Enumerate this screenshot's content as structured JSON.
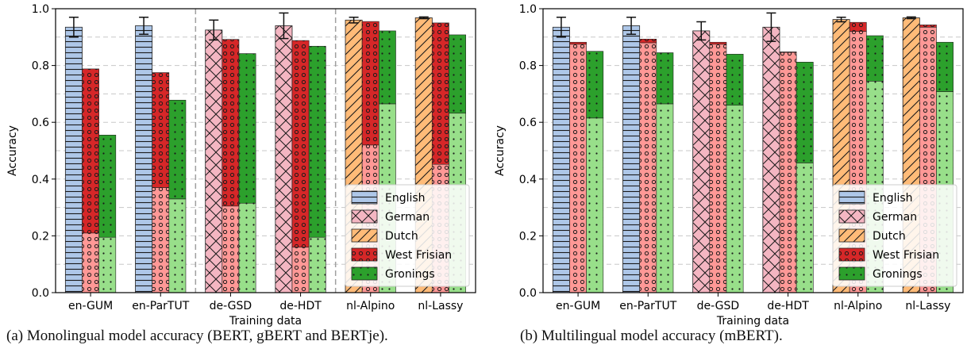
{
  "legend_colors": {
    "English": "#aec7e8",
    "German": "#f4b6c2",
    "Dutch": "#ffbb78",
    "West Frisian": "#d62728",
    "Gronings": "#2ca02c",
    "West Frisian (light)": "#ff9896",
    "Gronings (light)": "#98df8a"
  },
  "captions": {
    "a": "(a) Monolingual model accuracy (BERT, gBERT and BERTje).",
    "b": "(b) Multilingual model accuracy (mBERT)."
  },
  "chart_data": [
    {
      "type": "bar",
      "title": "",
      "xlabel": "Training data",
      "ylabel": "Accuracy",
      "ylim": [
        0,
        1
      ],
      "yticks": [
        "0.0",
        "0.2",
        "0.4",
        "0.6",
        "0.8",
        "1.0"
      ],
      "grid": "horizontal dashed",
      "group_separators": "dashed vertical lines after en-ParTUT and de-HDT",
      "legend_position": "lower right",
      "legend": [
        "English",
        "German",
        "Dutch",
        "West Frisian",
        "Gronings"
      ],
      "categories": [
        "en-GUM",
        "en-ParTUT",
        "de-GSD",
        "de-HDT",
        "nl-Alpino",
        "nl-Lassy"
      ],
      "source_language": [
        "English",
        "English",
        "German",
        "German",
        "Dutch",
        "Dutch"
      ],
      "series": [
        {
          "name": "English",
          "values": [
            0.935,
            0.94,
            0.925,
            0.94,
            0.96,
            0.968
          ],
          "error": [
            0.035,
            0.03,
            0.035,
            0.045,
            0.01,
            0.003
          ],
          "role": "in-language bar"
        },
        {
          "name": "West Frisian",
          "values": [
            0.788,
            0.775,
            0.892,
            0.888,
            0.955,
            0.95
          ],
          "transfer_lower": [
            0.21,
            0.37,
            0.305,
            0.16,
            0.52,
            0.452
          ]
        },
        {
          "name": "Gronings",
          "values": [
            0.555,
            0.678,
            0.842,
            0.868,
            0.922,
            0.908
          ],
          "transfer_lower": [
            0.195,
            0.33,
            0.315,
            0.195,
            0.665,
            0.632
          ]
        }
      ]
    },
    {
      "type": "bar",
      "title": "",
      "xlabel": "Training data",
      "ylabel": "Accuracy",
      "ylim": [
        0,
        1
      ],
      "yticks": [
        "0.0",
        "0.2",
        "0.4",
        "0.6",
        "0.8",
        "1.0"
      ],
      "grid": "horizontal dashed",
      "legend_position": "lower right",
      "legend": [
        "English",
        "German",
        "Dutch",
        "West Frisian",
        "Gronings"
      ],
      "categories": [
        "en-GUM",
        "en-ParTUT",
        "de-GSD",
        "de-HDT",
        "nl-Alpino",
        "nl-Lassy"
      ],
      "source_language": [
        "English",
        "English",
        "German",
        "German",
        "Dutch",
        "Dutch"
      ],
      "series": [
        {
          "name": "English",
          "values": [
            0.935,
            0.94,
            0.922,
            0.935,
            0.962,
            0.968
          ],
          "error": [
            0.035,
            0.03,
            0.032,
            0.05,
            0.008,
            0.003
          ],
          "role": "in-language bar"
        },
        {
          "name": "West Frisian",
          "values": [
            0.882,
            0.893,
            0.882,
            0.848,
            0.952,
            0.943
          ],
          "transfer_lower": [
            0.875,
            0.88,
            0.875,
            0.846,
            0.92,
            0.935
          ]
        },
        {
          "name": "Gronings",
          "values": [
            0.85,
            0.845,
            0.84,
            0.812,
            0.905,
            0.882
          ],
          "transfer_lower": [
            0.615,
            0.665,
            0.66,
            0.457,
            0.745,
            0.708
          ]
        }
      ]
    }
  ]
}
